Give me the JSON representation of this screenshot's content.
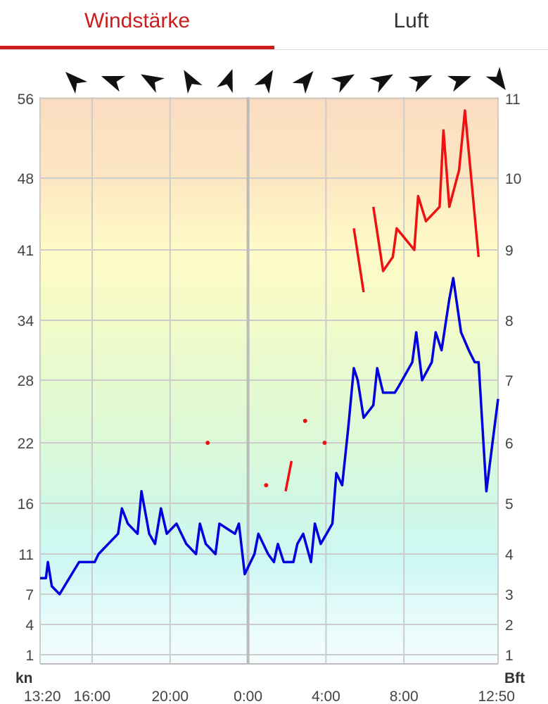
{
  "tabs": [
    {
      "label": "Windstärke",
      "active": true
    },
    {
      "label": "Luft",
      "active": false
    }
  ],
  "colors": {
    "accent": "#cc1c1c",
    "wind_line": "#0000dd",
    "gust_line": "#ee1111",
    "grid": "#cccccc"
  },
  "chart_data": {
    "type": "line",
    "x_unit": "hours since 13:20",
    "x_ticks": [
      {
        "x": 0,
        "label": "13:20"
      },
      {
        "x": 2.67,
        "label": "16:00"
      },
      {
        "x": 6.67,
        "label": "20:00"
      },
      {
        "x": 10.67,
        "label": "0:00"
      },
      {
        "x": 14.67,
        "label": "4:00"
      },
      {
        "x": 18.67,
        "label": "8:00"
      },
      {
        "x": 23.5,
        "label": "12:50"
      }
    ],
    "left_axis": {
      "unit": "kn",
      "ticks": [
        "56",
        "48",
        "41",
        "34",
        "28",
        "22",
        "16",
        "11",
        "7",
        "4",
        "1"
      ]
    },
    "right_axis": {
      "unit": "Bft",
      "ticks": [
        "11",
        "10",
        "9",
        "8",
        "7",
        "6",
        "5",
        "4",
        "3",
        "2",
        "1"
      ]
    },
    "wind_directions": [
      "135",
      "110",
      "120",
      "150",
      "200",
      "210",
      "220",
      "240",
      "240",
      "245",
      "250",
      "325"
    ],
    "series": [
      {
        "role": "wind",
        "color": "#0000dd",
        "points": [
          [
            0,
            3.4
          ],
          [
            0.3,
            3.4
          ],
          [
            0.4,
            3.8
          ],
          [
            0.6,
            3.2
          ],
          [
            1.0,
            3.0
          ],
          [
            2.0,
            3.8
          ],
          [
            2.8,
            3.8
          ],
          [
            3.0,
            4.0
          ],
          [
            4.0,
            4.4
          ],
          [
            4.2,
            4.9
          ],
          [
            4.5,
            4.6
          ],
          [
            5.0,
            4.4
          ],
          [
            5.2,
            5.2
          ],
          [
            5.6,
            4.4
          ],
          [
            5.9,
            4.2
          ],
          [
            6.2,
            4.9
          ],
          [
            6.5,
            4.4
          ],
          [
            7.0,
            4.6
          ],
          [
            7.5,
            4.2
          ],
          [
            8.0,
            4.0
          ],
          [
            8.2,
            4.6
          ],
          [
            8.5,
            4.2
          ],
          [
            9.0,
            4.0
          ],
          [
            9.2,
            4.6
          ],
          [
            9.6,
            4.5
          ],
          [
            10.0,
            4.4
          ],
          [
            10.2,
            4.6
          ],
          [
            10.5,
            3.5
          ],
          [
            11.0,
            4.0
          ],
          [
            11.2,
            4.4
          ],
          [
            11.7,
            4.0
          ],
          [
            12.0,
            3.8
          ],
          [
            12.2,
            4.2
          ],
          [
            12.5,
            3.8
          ],
          [
            13.0,
            3.8
          ],
          [
            13.2,
            4.2
          ],
          [
            13.5,
            4.4
          ],
          [
            13.9,
            3.8
          ],
          [
            14.1,
            4.6
          ],
          [
            14.4,
            4.2
          ],
          [
            15.0,
            4.6
          ],
          [
            15.2,
            5.5
          ],
          [
            15.5,
            5.3
          ],
          [
            15.8,
            6.2
          ],
          [
            16.1,
            7.2
          ],
          [
            16.3,
            7.0
          ],
          [
            16.6,
            6.4
          ],
          [
            17.1,
            6.6
          ],
          [
            17.3,
            7.2
          ],
          [
            17.6,
            6.8
          ],
          [
            18.0,
            6.8
          ],
          [
            18.2,
            6.8
          ],
          [
            18.4,
            6.9
          ],
          [
            19.1,
            7.3
          ],
          [
            19.3,
            7.8
          ],
          [
            19.6,
            7.0
          ],
          [
            20.1,
            7.3
          ],
          [
            20.3,
            7.8
          ],
          [
            20.6,
            7.5
          ],
          [
            21.0,
            8.3
          ],
          [
            21.2,
            8.6
          ],
          [
            21.6,
            7.8
          ],
          [
            22.0,
            7.5
          ],
          [
            22.3,
            7.3
          ],
          [
            22.5,
            7.3
          ],
          [
            22.9,
            5.2
          ],
          [
            23.5,
            6.7
          ]
        ]
      },
      {
        "role": "gust",
        "color": "#ee1111",
        "segments": [
          [
            [
              8.6,
              6.0
            ]
          ],
          [
            [
              11.6,
              5.3
            ]
          ],
          [
            [
              12.6,
              5.2
            ],
            [
              12.9,
              5.7
            ]
          ],
          [
            [
              13.6,
              6.35
            ]
          ],
          [
            [
              14.6,
              6.0
            ]
          ],
          [
            [
              16.1,
              9.3
            ],
            [
              16.6,
              8.4
            ]
          ],
          [
            [
              17.1,
              9.6
            ],
            [
              17.6,
              8.7
            ],
            [
              18.1,
              8.9
            ],
            [
              18.3,
              9.3
            ],
            [
              19.2,
              9.0
            ],
            [
              19.4,
              9.75
            ],
            [
              19.8,
              9.4
            ],
            [
              20.5,
              9.6
            ],
            [
              20.7,
              10.6
            ],
            [
              21.0,
              9.6
            ],
            [
              21.5,
              10.1
            ],
            [
              21.8,
              10.85
            ],
            [
              22.5,
              8.9
            ]
          ]
        ]
      }
    ],
    "xlim": [
      0,
      23.5
    ],
    "ylim_bft": [
      1,
      11
    ]
  }
}
